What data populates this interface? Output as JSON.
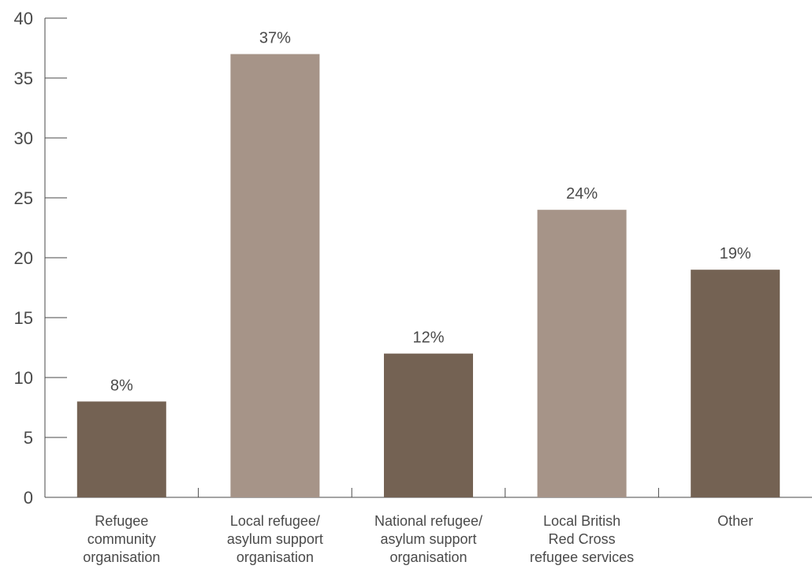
{
  "chart_data": {
    "type": "bar",
    "title": "",
    "xlabel": "",
    "ylabel": "",
    "categories": [
      [
        "Refugee",
        "community",
        "organisation"
      ],
      [
        "Local refugee/",
        "asylum support",
        "organisation"
      ],
      [
        "National refugee/",
        "asylum support",
        "organisation"
      ],
      [
        "Local British",
        "Red Cross",
        "refugee services"
      ],
      [
        "Other"
      ]
    ],
    "values": [
      8,
      37,
      12,
      24,
      19
    ],
    "data_labels": [
      "8%",
      "37%",
      "12%",
      "24%",
      "19%"
    ],
    "bar_colors": [
      "#746253",
      "#a69488",
      "#746253",
      "#a69488",
      "#746253"
    ],
    "ylim": [
      0,
      40
    ],
    "yticks": [
      0,
      5,
      10,
      15,
      20,
      25,
      30,
      35,
      40
    ],
    "grid": false,
    "legend": "none"
  },
  "colors": {
    "text": "#4a4a4a",
    "axis": "#4a4a4a",
    "dark_bar": "#746253",
    "light_bar": "#a69488"
  }
}
